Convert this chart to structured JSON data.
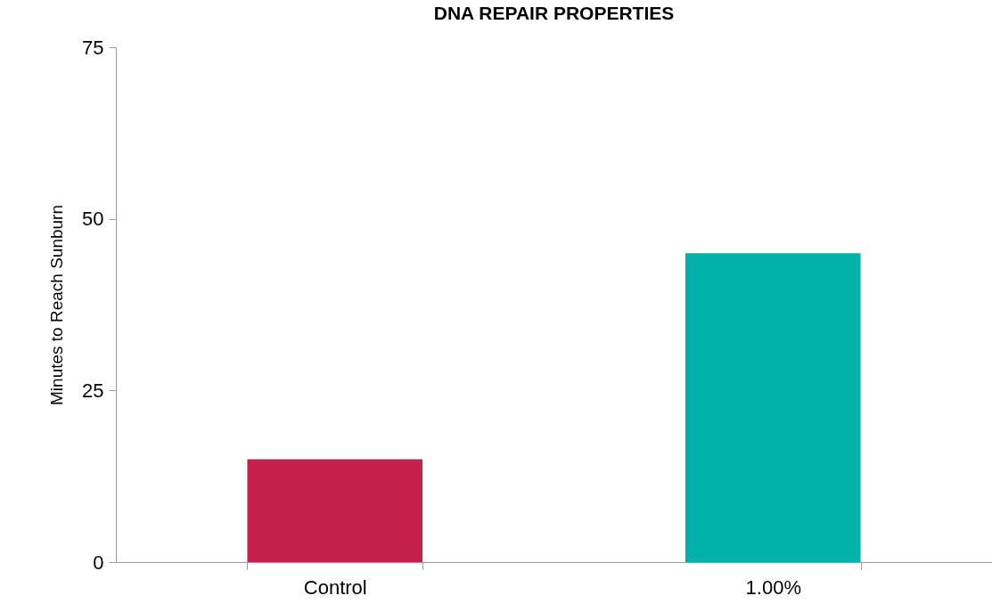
{
  "chart_data": {
    "type": "bar",
    "title": "DNA REPAIR PROPERTIES",
    "ylabel": "Minutes to Reach Sunburn",
    "categories": [
      "Control",
      "1.00%"
    ],
    "values": [
      15,
      45
    ],
    "colors": [
      "#c4204a",
      "#00b2aa"
    ],
    "ylim": [
      0,
      75
    ],
    "yticks": [
      0,
      25,
      50,
      75
    ],
    "grid": false
  }
}
